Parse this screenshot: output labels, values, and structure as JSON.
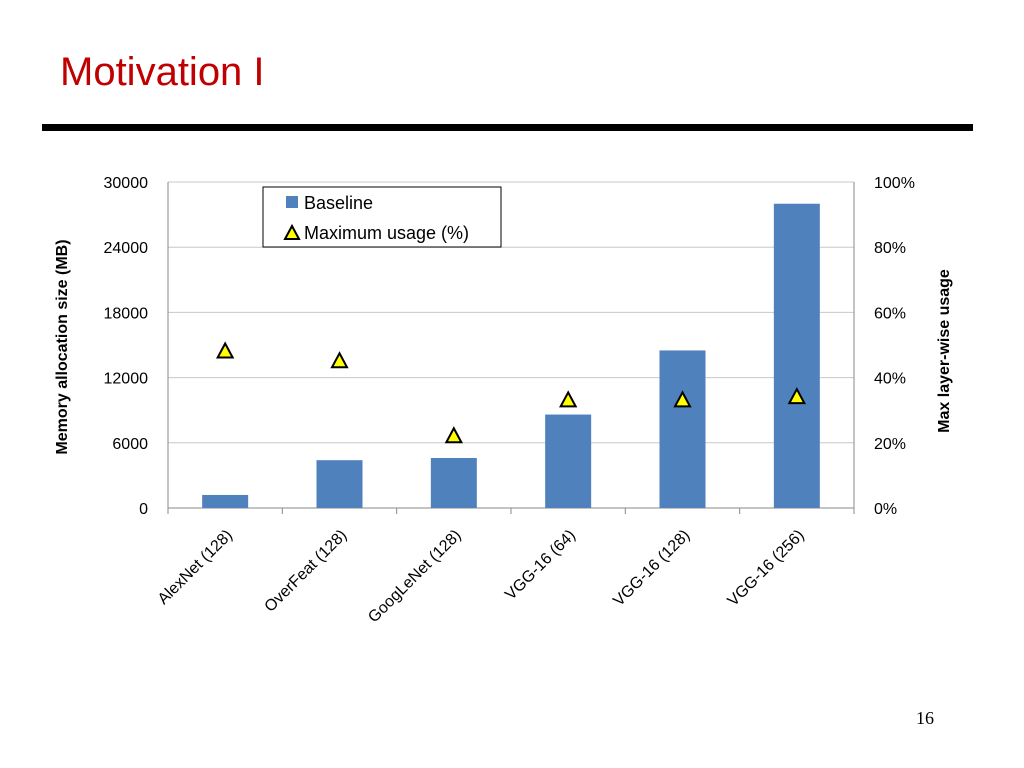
{
  "slide": {
    "title": "Motivation I",
    "page_number": "16"
  },
  "colors": {
    "title": "#c00000",
    "bar": "#4f81bd",
    "marker_fill": "#ffff00",
    "marker_stroke": "#000000",
    "grid": "#c8c8c8"
  },
  "chart_data": {
    "type": "bar",
    "categories": [
      "AlexNet  (128)",
      "OverFeat (128)",
      "GoogLeNet (128)",
      "VGG-16 (64)",
      "VGG-16 (128)",
      "VGG-16 (256)"
    ],
    "series": [
      {
        "name": "Baseline",
        "kind": "bar",
        "axis": "left",
        "values": [
          1200,
          4400,
          4600,
          8600,
          14500,
          28000
        ]
      },
      {
        "name": "Maximum usage (%)",
        "kind": "marker",
        "marker": "triangle",
        "axis": "right",
        "values": [
          48,
          45,
          22,
          33,
          33,
          34
        ]
      }
    ],
    "ylabel": "Memory allocation size  (MB)",
    "y2label": "Max layer-wise usage",
    "ylim": [
      0,
      30000
    ],
    "yticks": [
      "0",
      "6000",
      "12000",
      "18000",
      "24000",
      "30000"
    ],
    "y2lim": [
      0,
      100
    ],
    "y2ticks": [
      "0%",
      "20%",
      "40%",
      "60%",
      "80%",
      "100%"
    ],
    "grid": true,
    "legend_position": "top-left"
  }
}
